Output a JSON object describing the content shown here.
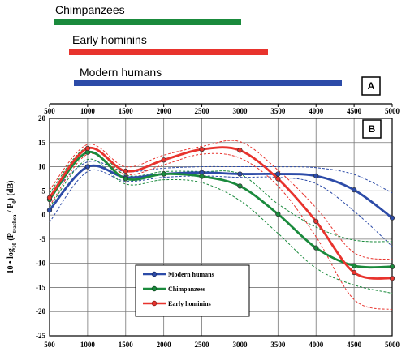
{
  "chart_data": [
    {
      "panel": "A",
      "type": "bar",
      "orientation": "horizontal",
      "categories": [
        "Chimpanzees",
        "Early hominins",
        "Modern humans"
      ],
      "series": [
        {
          "name": "Chimpanzees",
          "start": 500,
          "end": 3000,
          "color": "#1a8a3c"
        },
        {
          "name": "Early hominins",
          "start": 750,
          "end": 3350,
          "color": "#e8332d"
        },
        {
          "name": "Modern humans",
          "start": 830,
          "end": 4350,
          "color": "#2c4ba8"
        }
      ]
    },
    {
      "panel": "B",
      "type": "line",
      "ylabel": "10 • log10 (Ptrachea / P0) (dB)",
      "ylabel_parts": {
        "a": "10 • log",
        "sub1": "10",
        "b": " (P",
        "sub2": "trachea",
        "c": " / P",
        "sub3": "0",
        "d": ") (dB)"
      },
      "xlim": [
        500,
        5000
      ],
      "ylim": [
        -25,
        20
      ],
      "xticks": [
        500,
        1000,
        1500,
        2000,
        2500,
        3000,
        3500,
        4000,
        4500,
        5000
      ],
      "xtick_labels": [
        "500",
        "1000",
        "1500",
        "2000",
        "2500",
        "3000",
        "3500",
        "4000",
        "4500",
        "5000"
      ],
      "yticks": [
        -25,
        -20,
        -15,
        -10,
        -5,
        0,
        5,
        10,
        15,
        20
      ],
      "ytick_labels": [
        "-25",
        "-20",
        "-15",
        "-10",
        "-5",
        "0",
        "5",
        "10",
        "15",
        "20"
      ],
      "grid": true,
      "legend_position": "lower-left",
      "x": [
        500,
        1000,
        1500,
        2000,
        2500,
        3000,
        3500,
        4000,
        4500,
        5000
      ],
      "series": [
        {
          "name": "Modern humans",
          "color": "#2c4ba8",
          "values": [
            1,
            10,
            7.8,
            8.5,
            8.8,
            8.5,
            8.5,
            8.1,
            5.2,
            -0.6
          ],
          "upper": [
            4,
            11,
            9,
            9.7,
            10,
            10,
            10,
            9.8,
            8.4,
            4.6
          ],
          "lower": [
            -1.5,
            9,
            7,
            7.8,
            8.1,
            7.8,
            7.8,
            6.5,
            0.8,
            -6.5
          ]
        },
        {
          "name": "Chimpanzees",
          "color": "#1a8a3c",
          "values": [
            3.2,
            13,
            7.5,
            8.5,
            8,
            6,
            0.2,
            -6.8,
            -10.5,
            -10.7
          ],
          "upper": [
            4.5,
            14,
            8.3,
            9,
            9,
            8.5,
            2.3,
            -2.5,
            -5.2,
            -5.5
          ],
          "lower": [
            1.6,
            11.5,
            6.4,
            7.3,
            6.7,
            3,
            -3.8,
            -11,
            -14.5,
            -16.2
          ]
        },
        {
          "name": "Early hominins",
          "color": "#e8332d",
          "values": [
            3.6,
            13.8,
            9.1,
            11.4,
            13.6,
            13.4,
            7.5,
            -1.3,
            -11.9,
            -13.1
          ],
          "upper": [
            5.2,
            14.6,
            10,
            12.4,
            14.2,
            15.2,
            9.3,
            1.5,
            -7.8,
            -9.2
          ],
          "lower": [
            1.9,
            12.6,
            8.4,
            10.4,
            12.6,
            11.8,
            6,
            -4.5,
            -17.5,
            -19.6
          ]
        }
      ]
    }
  ],
  "panels": {
    "a": "A",
    "b": "B"
  }
}
